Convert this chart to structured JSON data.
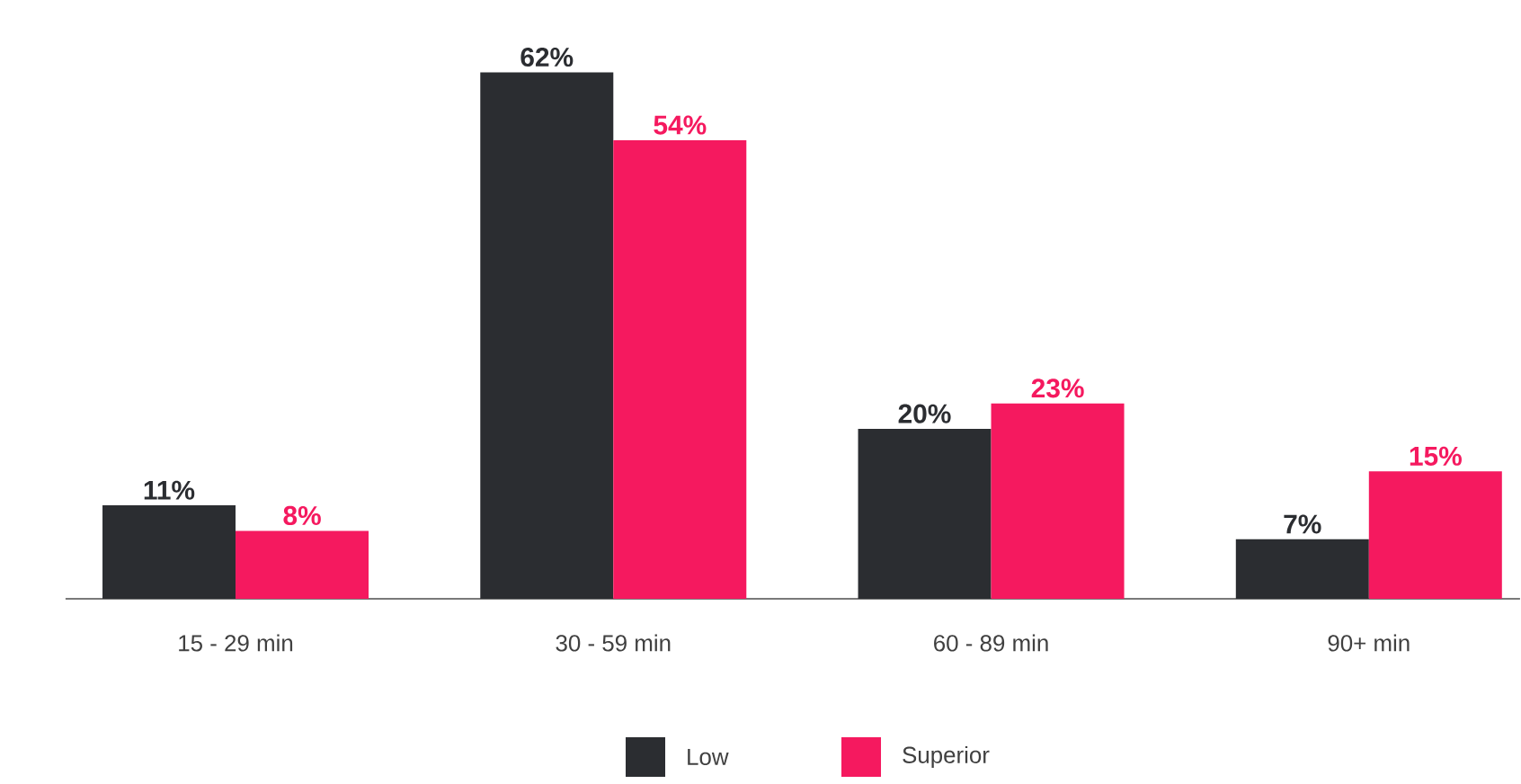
{
  "chart_data": {
    "type": "bar",
    "categories": [
      "15 - 29 min",
      "30 - 59 min",
      "60 - 89 min",
      "90+ min"
    ],
    "series": [
      {
        "name": "Low",
        "color": "#2b2d31",
        "values": [
          11,
          62,
          20,
          7
        ],
        "value_labels": [
          "11%",
          "62%",
          "20%",
          "7%"
        ]
      },
      {
        "name": "Superior",
        "color": "#f5195f",
        "values": [
          8,
          54,
          23,
          15
        ],
        "value_labels": [
          "8%",
          "54%",
          "23%",
          "15%"
        ]
      }
    ],
    "legend": "bottom"
  }
}
